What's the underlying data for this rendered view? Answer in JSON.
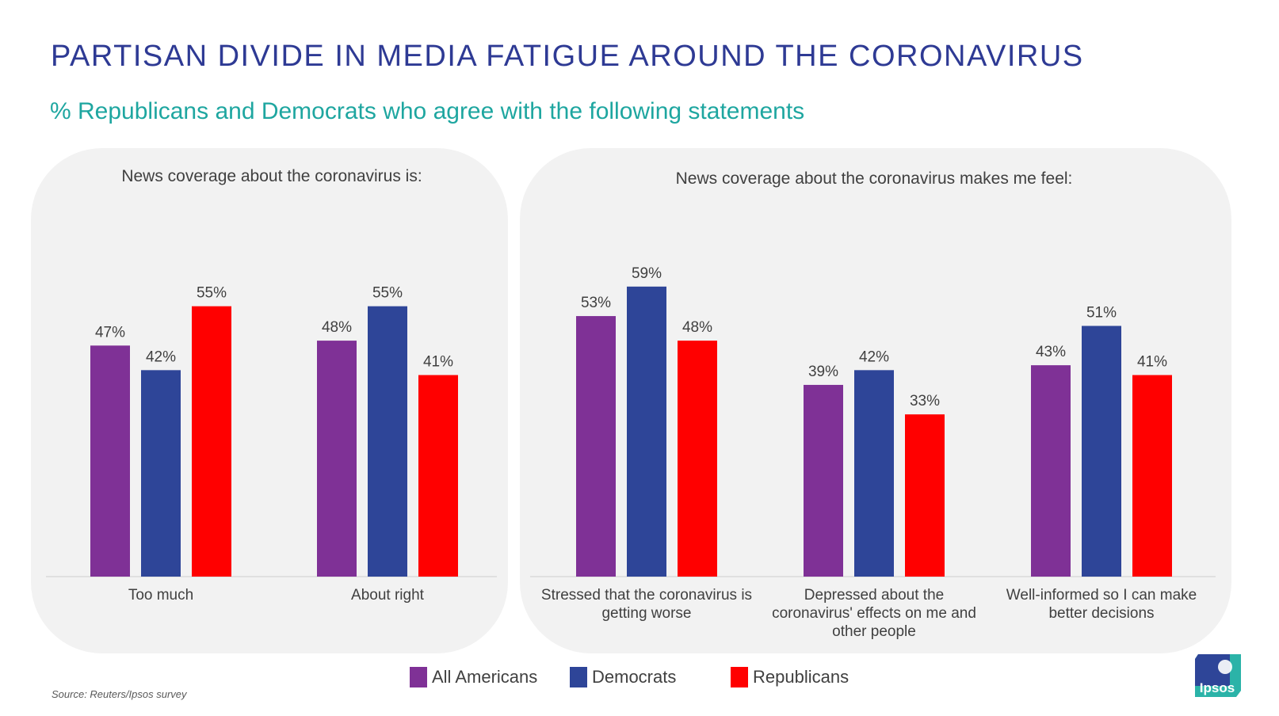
{
  "header": {
    "title": "PARTISAN DIVIDE IN MEDIA FATIGUE AROUND THE CORONAVIRUS",
    "subtitle": "% Republicans and Democrats who agree with the following statements"
  },
  "colors": {
    "all_americans": "#7f3196",
    "democrats": "#2e4598",
    "republicans": "#ff0000",
    "title": "#2e3a94",
    "subtitle": "#1ea6a0",
    "panel": "#f2f2f2"
  },
  "chart_data": [
    {
      "type": "bar",
      "title": "News coverage about the coronavirus is:",
      "categories": [
        "Too much",
        "About right"
      ],
      "series": [
        {
          "name": "All Americans",
          "values": [
            47,
            48
          ]
        },
        {
          "name": "Democrats",
          "values": [
            42,
            55
          ]
        },
        {
          "name": "Republicans",
          "values": [
            55,
            41
          ]
        }
      ],
      "ylim": [
        0,
        63
      ],
      "value_suffix": "%",
      "grid": false
    },
    {
      "type": "bar",
      "title": "News coverage about the coronavirus makes me feel:",
      "categories": [
        "Stressed that the coronavirus is getting worse",
        "Depressed about the coronavirus' effects on me and other people",
        "Well-informed so I can make better decisions"
      ],
      "series": [
        {
          "name": "All Americans",
          "values": [
            53,
            39,
            43
          ]
        },
        {
          "name": "Democrats",
          "values": [
            59,
            42,
            51
          ]
        },
        {
          "name": "Republicans",
          "values": [
            48,
            33,
            41
          ]
        }
      ],
      "ylim": [
        0,
        63
      ],
      "value_suffix": "%",
      "grid": false
    }
  ],
  "legend": {
    "placement": "bottom-center",
    "items": [
      {
        "label": "All Americans",
        "color": "#7f3196"
      },
      {
        "label": "Democrats",
        "color": "#2e4598"
      },
      {
        "label": "Republicans",
        "color": "#ff0000"
      }
    ]
  },
  "footer": {
    "source": "Source: Reuters/Ipsos survey",
    "logo_text": "Ipsos"
  }
}
